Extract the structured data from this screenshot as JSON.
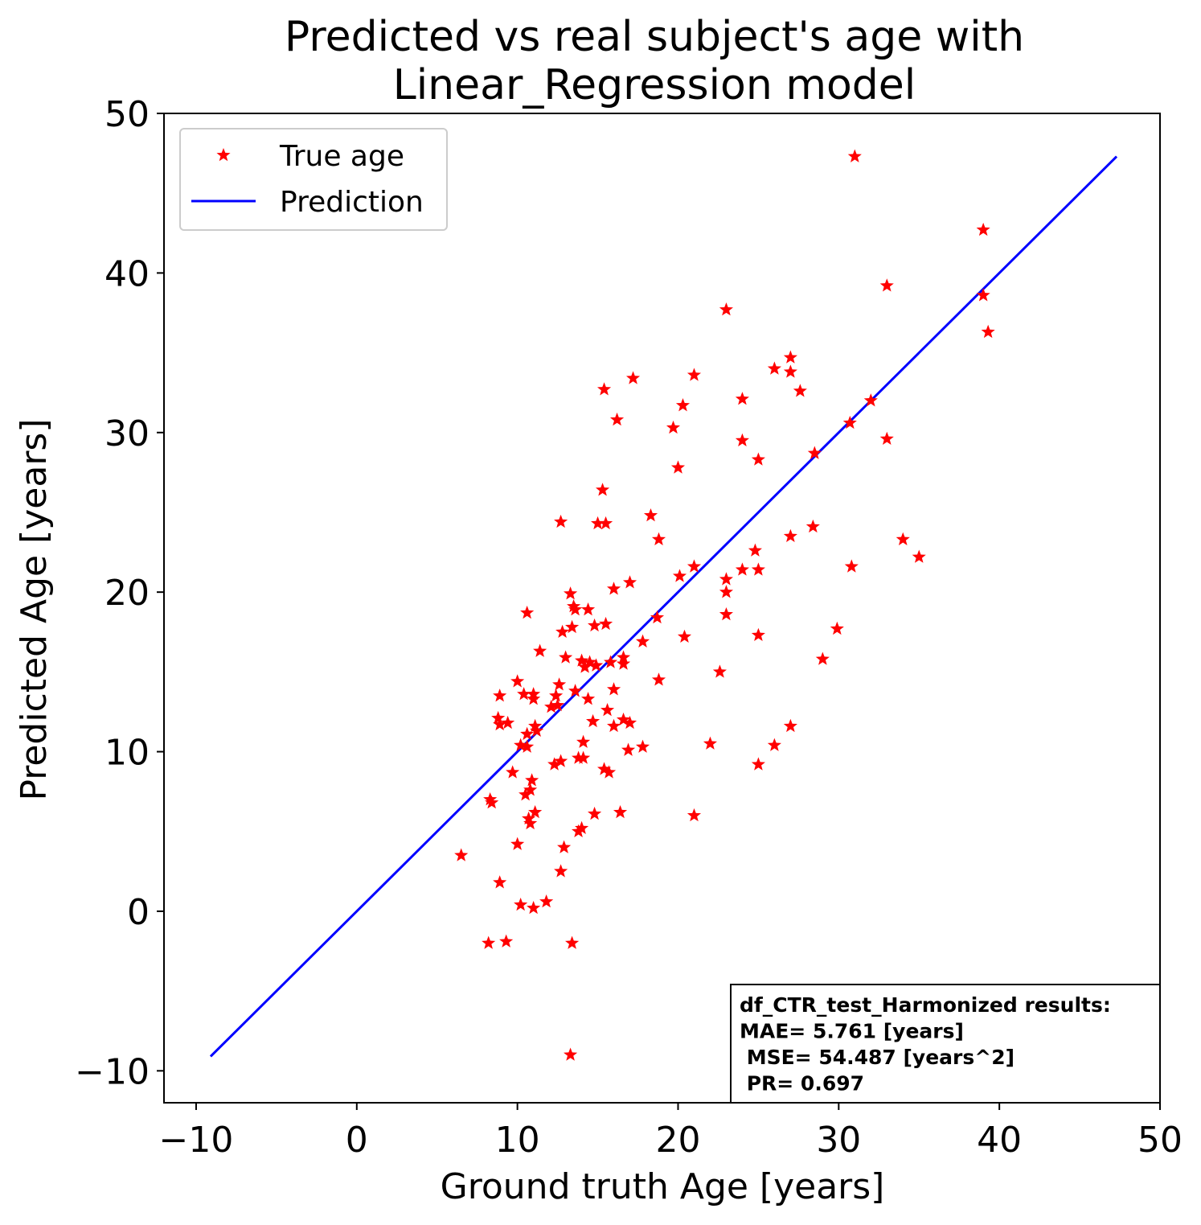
{
  "chart_data": {
    "type": "scatter",
    "title_lines": [
      "Predicted vs real subject's age with",
      "Linear_Regression model"
    ],
    "xlabel": "Ground truth Age [years]",
    "ylabel": "Predicted Age [years]",
    "xlim": [
      -12,
      50
    ],
    "ylim": [
      -12,
      50
    ],
    "xticks": [
      -10,
      0,
      10,
      20,
      30,
      40,
      50
    ],
    "yticks": [
      -10,
      0,
      10,
      20,
      30,
      40,
      50
    ],
    "tick_labels_x": [
      "−10",
      "0",
      "10",
      "20",
      "30",
      "40",
      "50"
    ],
    "tick_labels_y": [
      "−10",
      "0",
      "10",
      "20",
      "30",
      "40",
      "50"
    ],
    "grid": false,
    "legend": {
      "placement": "top-left",
      "entries": [
        {
          "label": "True age",
          "marker": "star",
          "color": "#ff0000"
        },
        {
          "label": "Prediction",
          "marker": "line",
          "color": "#0000ff"
        }
      ]
    },
    "annotation": {
      "placement": "bottom-right",
      "lines": [
        "df_CTR_test_Harmonized results:",
        "MAE= 5.761 [years]",
        " MSE= 54.487 [years^2]",
        " PR= 0.697"
      ]
    },
    "prediction_line": {
      "x": [
        -9.1,
        47.3
      ],
      "y": [
        -9.1,
        47.3
      ],
      "color": "#0000ff"
    },
    "series": [
      {
        "label": "True age",
        "color": "#ff0000",
        "marker": "star",
        "points": [
          [
            31.0,
            47.3
          ],
          [
            39.0,
            42.7
          ],
          [
            33.0,
            39.2
          ],
          [
            23.0,
            37.7
          ],
          [
            39.0,
            38.6
          ],
          [
            39.3,
            36.3
          ],
          [
            27.0,
            34.7
          ],
          [
            26.0,
            34.0
          ],
          [
            27.0,
            33.8
          ],
          [
            21.0,
            33.6
          ],
          [
            17.2,
            33.4
          ],
          [
            15.4,
            32.7
          ],
          [
            27.6,
            32.6
          ],
          [
            24.0,
            32.1
          ],
          [
            32.0,
            32.0
          ],
          [
            20.3,
            31.7
          ],
          [
            16.2,
            30.8
          ],
          [
            30.7,
            30.6
          ],
          [
            19.7,
            30.3
          ],
          [
            24.0,
            29.5
          ],
          [
            33.0,
            29.6
          ],
          [
            28.5,
            28.7
          ],
          [
            25.0,
            28.3
          ],
          [
            20.0,
            27.8
          ],
          [
            15.3,
            26.4
          ],
          [
            12.7,
            24.4
          ],
          [
            15.0,
            24.3
          ],
          [
            15.5,
            24.3
          ],
          [
            18.3,
            24.8
          ],
          [
            28.4,
            24.1
          ],
          [
            18.8,
            23.3
          ],
          [
            34.0,
            23.3
          ],
          [
            27.0,
            23.5
          ],
          [
            24.8,
            22.6
          ],
          [
            35.0,
            22.2
          ],
          [
            21.0,
            21.6
          ],
          [
            24.0,
            21.4
          ],
          [
            25.0,
            21.4
          ],
          [
            30.8,
            21.6
          ],
          [
            20.1,
            21.0
          ],
          [
            23.0,
            20.8
          ],
          [
            17.0,
            20.6
          ],
          [
            16.0,
            20.2
          ],
          [
            23.0,
            20.0
          ],
          [
            13.3,
            19.9
          ],
          [
            13.5,
            19.1
          ],
          [
            13.6,
            18.9
          ],
          [
            14.4,
            18.9
          ],
          [
            10.6,
            18.7
          ],
          [
            18.7,
            18.4
          ],
          [
            23.0,
            18.6
          ],
          [
            12.8,
            17.5
          ],
          [
            13.4,
            17.8
          ],
          [
            14.8,
            17.9
          ],
          [
            15.5,
            18.0
          ],
          [
            29.9,
            17.7
          ],
          [
            20.4,
            17.2
          ],
          [
            25.0,
            17.3
          ],
          [
            17.8,
            16.9
          ],
          [
            11.4,
            16.3
          ],
          [
            13.0,
            15.9
          ],
          [
            14.0,
            15.7
          ],
          [
            14.2,
            15.3
          ],
          [
            14.9,
            15.4
          ],
          [
            15.8,
            15.6
          ],
          [
            16.6,
            15.9
          ],
          [
            16.6,
            15.5
          ],
          [
            29.0,
            15.8
          ],
          [
            14.5,
            15.6
          ],
          [
            22.6,
            15.0
          ],
          [
            18.8,
            14.5
          ],
          [
            10.0,
            14.4
          ],
          [
            16.0,
            13.9
          ],
          [
            12.6,
            14.2
          ],
          [
            13.6,
            13.8
          ],
          [
            8.9,
            13.5
          ],
          [
            10.4,
            13.6
          ],
          [
            11.0,
            13.6
          ],
          [
            12.4,
            13.5
          ],
          [
            14.4,
            13.3
          ],
          [
            11.0,
            13.3
          ],
          [
            12.1,
            12.8
          ],
          [
            12.5,
            12.9
          ],
          [
            15.6,
            12.6
          ],
          [
            8.8,
            12.1
          ],
          [
            16.0,
            11.6
          ],
          [
            14.7,
            11.9
          ],
          [
            8.9,
            11.7
          ],
          [
            9.4,
            11.8
          ],
          [
            16.6,
            12.0
          ],
          [
            17.0,
            11.8
          ],
          [
            11.1,
            11.6
          ],
          [
            27.0,
            11.6
          ],
          [
            11.2,
            11.3
          ],
          [
            10.6,
            11.1
          ],
          [
            10.2,
            10.4
          ],
          [
            10.6,
            10.3
          ],
          [
            14.1,
            10.6
          ],
          [
            22.0,
            10.5
          ],
          [
            26.0,
            10.4
          ],
          [
            17.8,
            10.3
          ],
          [
            16.9,
            10.1
          ],
          [
            13.8,
            9.6
          ],
          [
            14.1,
            9.6
          ],
          [
            12.7,
            9.4
          ],
          [
            12.3,
            9.2
          ],
          [
            25.0,
            9.2
          ],
          [
            15.4,
            8.9
          ],
          [
            15.7,
            8.7
          ],
          [
            9.7,
            8.7
          ],
          [
            10.9,
            8.2
          ],
          [
            10.8,
            7.6
          ],
          [
            10.5,
            7.3
          ],
          [
            8.3,
            7.0
          ],
          [
            8.4,
            6.8
          ],
          [
            11.1,
            6.2
          ],
          [
            10.7,
            5.8
          ],
          [
            10.8,
            5.5
          ],
          [
            14.8,
            6.1
          ],
          [
            16.4,
            6.2
          ],
          [
            21.0,
            6.0
          ],
          [
            14.0,
            5.2
          ],
          [
            13.8,
            5.0
          ],
          [
            10.0,
            4.2
          ],
          [
            12.9,
            4.0
          ],
          [
            6.5,
            3.5
          ],
          [
            12.7,
            2.5
          ],
          [
            8.9,
            1.8
          ],
          [
            10.2,
            0.4
          ],
          [
            11.0,
            0.2
          ],
          [
            11.8,
            0.6
          ],
          [
            8.2,
            -2.0
          ],
          [
            9.3,
            -1.9
          ],
          [
            13.4,
            -2.0
          ],
          [
            13.3,
            -9.0
          ]
        ]
      }
    ]
  }
}
